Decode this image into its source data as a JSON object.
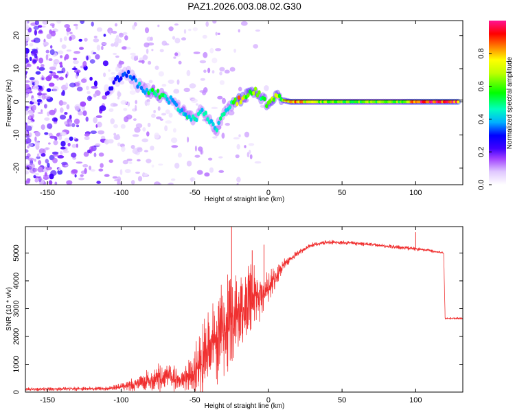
{
  "title": "PAZ1.2026.003.08.02.G30",
  "chart_data": [
    {
      "type": "heatmap",
      "name": "spectrogram",
      "xlabel": "Height of straight line (km)",
      "ylabel": "Frequency (Hz)",
      "xlim": [
        -165,
        132
      ],
      "ylim": [
        -25,
        24.5
      ],
      "xticks": [
        -150,
        -100,
        -50,
        0,
        50,
        100
      ],
      "yticks": [
        -20,
        -10,
        0,
        10,
        20
      ],
      "colorbar": {
        "label": "Normalized spectral amplitude",
        "range": [
          0,
          1
        ],
        "ticks": [
          0.0,
          0.2,
          0.4,
          0.6,
          0.8
        ],
        "colors": [
          "#ffffff",
          "#e8d4ff",
          "#9b30ff",
          "#5a00e0",
          "#0000ff",
          "#00c8ff",
          "#00ff80",
          "#00ff00",
          "#ffff00",
          "#ff8000",
          "#ff0000",
          "#ff1493"
        ]
      },
      "signal_track": [
        {
          "x": -110,
          "freq": 3.0,
          "amp": 0.25
        },
        {
          "x": -100,
          "freq": 8.0,
          "amp": 0.3
        },
        {
          "x": -95,
          "freq": 9.0,
          "amp": 0.35
        },
        {
          "x": -90,
          "freq": 5.5,
          "amp": 0.35
        },
        {
          "x": -85,
          "freq": 4.0,
          "amp": 0.4
        },
        {
          "x": -80,
          "freq": 3.0,
          "amp": 0.5
        },
        {
          "x": -75,
          "freq": 2.5,
          "amp": 0.55
        },
        {
          "x": -70,
          "freq": 1.0,
          "amp": 0.45
        },
        {
          "x": -65,
          "freq": 0.5,
          "amp": 0.4
        },
        {
          "x": -60,
          "freq": -2.0,
          "amp": 0.4
        },
        {
          "x": -55,
          "freq": -4.5,
          "amp": 0.45
        },
        {
          "x": -50,
          "freq": -5.5,
          "amp": 0.45
        },
        {
          "x": -45,
          "freq": -2.0,
          "amp": 0.4
        },
        {
          "x": -40,
          "freq": -6.0,
          "amp": 0.45
        },
        {
          "x": -35,
          "freq": -8.0,
          "amp": 0.45
        },
        {
          "x": -30,
          "freq": -3.5,
          "amp": 0.45
        },
        {
          "x": -25,
          "freq": -1.0,
          "amp": 0.5
        },
        {
          "x": -20,
          "freq": 0.5,
          "amp": 0.8
        },
        {
          "x": -15,
          "freq": 2.0,
          "amp": 0.6
        },
        {
          "x": -10,
          "freq": 3.5,
          "amp": 0.65
        },
        {
          "x": -5,
          "freq": 1.5,
          "amp": 0.55
        },
        {
          "x": 0,
          "freq": -1.0,
          "amp": 0.6
        },
        {
          "x": 5,
          "freq": 1.5,
          "amp": 0.65
        },
        {
          "x": 10,
          "freq": 0.5,
          "amp": 0.6
        },
        {
          "x": 15,
          "freq": 0.0,
          "amp": 0.85
        },
        {
          "x": 30,
          "freq": 0.0,
          "amp": 0.65
        },
        {
          "x": 50,
          "freq": 0.0,
          "amp": 0.6
        },
        {
          "x": 70,
          "freq": 0.0,
          "amp": 0.6
        },
        {
          "x": 90,
          "freq": 0.0,
          "amp": 0.6
        },
        {
          "x": 98,
          "freq": 0.0,
          "amp": 0.85
        },
        {
          "x": 110,
          "freq": 0.0,
          "amp": 0.9
        },
        {
          "x": 130,
          "freq": 0.0,
          "amp": 0.9
        }
      ]
    },
    {
      "type": "line",
      "name": "snr",
      "xlabel": "Height of straight line (km)",
      "ylabel": "SNR (10 * v/v)",
      "xlim": [
        -165,
        132
      ],
      "ylim": [
        0,
        5950
      ],
      "xticks": [
        -150,
        -100,
        -50,
        0,
        50,
        100
      ],
      "yticks": [
        0,
        1000,
        2000,
        3000,
        4000,
        5000
      ],
      "color": "#f03030",
      "envelope_x": [
        -165,
        -110,
        -100,
        -90,
        -80,
        -70,
        -60,
        -52,
        -46,
        -40,
        -35,
        -30,
        -25,
        -20,
        -15,
        -10,
        -5,
        0,
        5,
        10,
        20,
        30,
        40,
        50,
        60,
        80,
        100,
        110,
        119,
        120,
        125,
        132
      ],
      "envelope_mean": [
        100,
        130,
        200,
        280,
        420,
        560,
        400,
        600,
        1100,
        1600,
        1900,
        2200,
        2600,
        2900,
        3100,
        3300,
        3400,
        3700,
        4100,
        4600,
        5000,
        5300,
        5380,
        5390,
        5350,
        5250,
        5150,
        5080,
        5000,
        2650,
        2650,
        2650
      ],
      "envelope_spread": [
        60,
        70,
        130,
        250,
        450,
        550,
        400,
        700,
        1200,
        1500,
        1700,
        1800,
        1800,
        1600,
        1400,
        1200,
        1000,
        700,
        400,
        200,
        100,
        80,
        80,
        70,
        70,
        70,
        70,
        60,
        60,
        40,
        40,
        40
      ],
      "spikes": [
        {
          "x": -25,
          "y": 5950
        },
        {
          "x": 100,
          "y": 5750
        },
        {
          "x": -3,
          "y": 5300
        },
        {
          "x": -11,
          "y": 5100
        }
      ]
    }
  ]
}
